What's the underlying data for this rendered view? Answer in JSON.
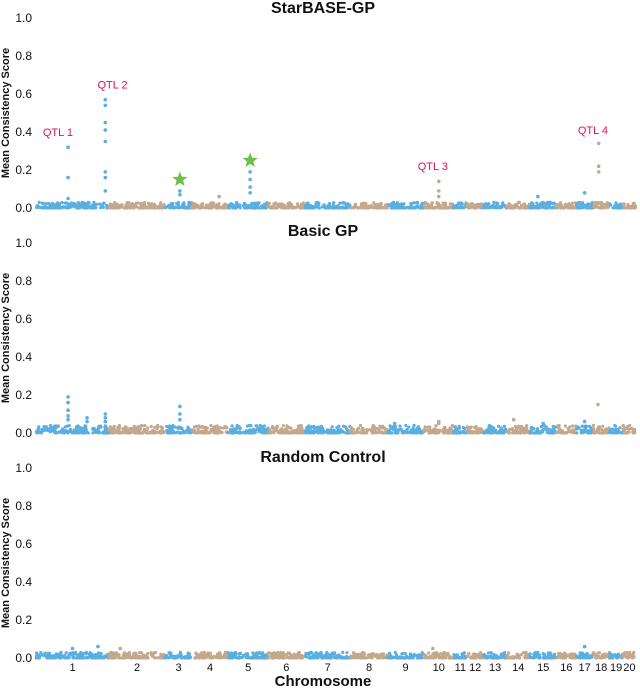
{
  "chart_data": {
    "type": "scatter",
    "title": "",
    "xlabel": "Chromosome",
    "ylabel": "Mean Consistency Score",
    "ylim": [
      0,
      1.0
    ],
    "yticks": [
      "0.0",
      "0.2",
      "0.4",
      "0.6",
      "0.8",
      "1.0"
    ],
    "chromosomes": [
      "1",
      "2",
      "3",
      "4",
      "5",
      "6",
      "7",
      "8",
      "9",
      "10",
      "11",
      "12",
      "13",
      "14",
      "15",
      "16",
      "17",
      "18",
      "19",
      "20"
    ],
    "chromosome_lengths": [
      22,
      17,
      8,
      11,
      12,
      11,
      14,
      11,
      11,
      9,
      4,
      5,
      7,
      7,
      8,
      6,
      5,
      5,
      4,
      4
    ],
    "colors": {
      "odd": "#5aaee0",
      "even": "#c4a88e",
      "label_red": "#dd1155",
      "star": "#6cc04a"
    },
    "panels": [
      {
        "title": "StarBASE-GP",
        "baseline_max": 0.03,
        "peaks": [
          {
            "chromosome": "1",
            "pos": 0.44,
            "values": [
              0.32,
              0.16,
              0.05
            ]
          },
          {
            "chromosome": "1",
            "pos": 0.95,
            "values": [
              0.57,
              0.54,
              0.45,
              0.41,
              0.35,
              0.19,
              0.16,
              0.09
            ]
          },
          {
            "chromosome": "3",
            "pos": 0.55,
            "values": [
              0.09,
              0.07
            ]
          },
          {
            "chromosome": "5",
            "pos": 0.55,
            "values": [
              0.19,
              0.15,
              0.11,
              0.08
            ]
          },
          {
            "chromosome": "10",
            "pos": 0.5,
            "values": [
              0.14,
              0.09,
              0.06
            ]
          },
          {
            "chromosome": "17",
            "pos": 0.5,
            "values": [
              0.08
            ]
          },
          {
            "chromosome": "18",
            "pos": 0.35,
            "values": [
              0.34,
              0.22,
              0.19
            ]
          },
          {
            "chromosome": "15",
            "pos": 0.3,
            "values": [
              0.06
            ]
          },
          {
            "chromosome": "4",
            "pos": 0.75,
            "values": [
              0.06
            ]
          }
        ],
        "annotations": [
          {
            "text": "QTL 1",
            "chromosome": "1",
            "pos": 0.3,
            "y": 0.38
          },
          {
            "text": "QTL 2",
            "chromosome": "1",
            "pos": 1.05,
            "y": 0.63
          },
          {
            "text": "QTL 3",
            "chromosome": "10",
            "pos": 0.3,
            "y": 0.2
          },
          {
            "text": "QTL 4",
            "chromosome": "17",
            "pos": 1.0,
            "y": 0.39
          }
        ],
        "stars": [
          {
            "chromosome": "3",
            "pos": 0.55,
            "y": 0.15
          },
          {
            "chromosome": "5",
            "pos": 0.55,
            "y": 0.25
          }
        ]
      },
      {
        "title": "Basic GP",
        "baseline_max": 0.04,
        "peaks": [
          {
            "chromosome": "1",
            "pos": 0.44,
            "values": [
              0.19,
              0.16,
              0.12,
              0.09,
              0.07
            ]
          },
          {
            "chromosome": "1",
            "pos": 0.7,
            "values": [
              0.08,
              0.06
            ]
          },
          {
            "chromosome": "1",
            "pos": 0.95,
            "values": [
              0.1,
              0.08,
              0.06
            ]
          },
          {
            "chromosome": "3",
            "pos": 0.55,
            "values": [
              0.14,
              0.1,
              0.07
            ]
          },
          {
            "chromosome": "9",
            "pos": 0.2,
            "values": [
              0.05
            ]
          },
          {
            "chromosome": "10",
            "pos": 0.5,
            "values": [
              0.06,
              0.05
            ]
          },
          {
            "chromosome": "14",
            "pos": 0.3,
            "values": [
              0.07
            ]
          },
          {
            "chromosome": "15",
            "pos": 0.5,
            "values": [
              0.05
            ]
          },
          {
            "chromosome": "17",
            "pos": 0.5,
            "values": [
              0.06
            ]
          },
          {
            "chromosome": "18",
            "pos": 0.3,
            "values": [
              0.15
            ]
          }
        ],
        "annotations": [],
        "stars": []
      },
      {
        "title": "Random Control",
        "baseline_max": 0.03,
        "peaks": [
          {
            "chromosome": "1",
            "pos": 0.5,
            "values": [
              0.05
            ]
          },
          {
            "chromosome": "1",
            "pos": 0.85,
            "values": [
              0.06
            ]
          },
          {
            "chromosome": "2",
            "pos": 0.2,
            "values": [
              0.05
            ]
          },
          {
            "chromosome": "10",
            "pos": 0.3,
            "values": [
              0.05
            ]
          },
          {
            "chromosome": "17",
            "pos": 0.5,
            "values": [
              0.06
            ]
          }
        ],
        "annotations": [],
        "stars": []
      }
    ]
  }
}
